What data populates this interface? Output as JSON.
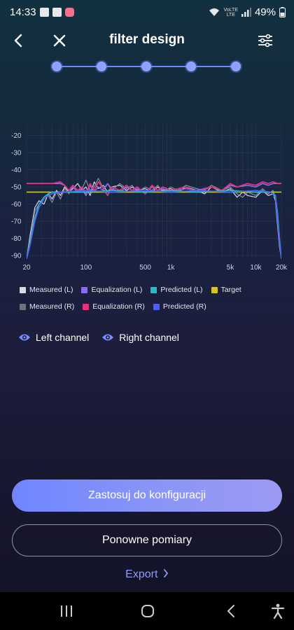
{
  "status_bar": {
    "time": "14:33",
    "battery": "49%",
    "network_label_top": "VoLTE",
    "network_label_bottom": "LTE"
  },
  "header": {
    "title": "filter design",
    "back_icon": "chevron-left-icon",
    "close_icon": "close-icon",
    "settings_icon": "sliders-icon"
  },
  "stepper": {
    "steps": 5,
    "current": 5
  },
  "chart_data": {
    "type": "line",
    "title": "",
    "xlabel": "",
    "ylabel": "",
    "x_scale": "log",
    "xlim": [
      20,
      20000
    ],
    "ylim": [
      -92,
      -12
    ],
    "grid": true,
    "y_ticks": [
      "-20",
      "-30",
      "-40",
      "-50",
      "-60",
      "-70",
      "-80",
      "-90"
    ],
    "y_tick_values": [
      -20,
      -30,
      -40,
      -50,
      -60,
      -70,
      -80,
      -90
    ],
    "x_ticks": [
      "20",
      "100",
      "500",
      "1k",
      "5k",
      "10k",
      "20k"
    ],
    "x_tick_values": [
      20,
      100,
      500,
      1000,
      5000,
      10000,
      20000
    ],
    "series": [
      {
        "name": "Measured (L)",
        "color": "#d9d9e0",
        "width": 1.2,
        "points": [
          [
            20,
            -92
          ],
          [
            22,
            -78
          ],
          [
            25,
            -62
          ],
          [
            28,
            -58
          ],
          [
            32,
            -60
          ],
          [
            36,
            -54
          ],
          [
            40,
            -57
          ],
          [
            45,
            -52
          ],
          [
            50,
            -55
          ],
          [
            56,
            -50
          ],
          [
            63,
            -53
          ],
          [
            70,
            -51
          ],
          [
            80,
            -48
          ],
          [
            90,
            -52
          ],
          [
            100,
            -50
          ],
          [
            112,
            -55
          ],
          [
            125,
            -47
          ],
          [
            140,
            -51
          ],
          [
            160,
            -49
          ],
          [
            180,
            -53
          ],
          [
            200,
            -50
          ],
          [
            250,
            -49
          ],
          [
            300,
            -52
          ],
          [
            350,
            -50
          ],
          [
            400,
            -52
          ],
          [
            500,
            -51
          ],
          [
            600,
            -53
          ],
          [
            700,
            -50
          ],
          [
            800,
            -52
          ],
          [
            1000,
            -51
          ],
          [
            1200,
            -53
          ],
          [
            1500,
            -50
          ],
          [
            2000,
            -52
          ],
          [
            2500,
            -54
          ],
          [
            3000,
            -50
          ],
          [
            4000,
            -53
          ],
          [
            5000,
            -51
          ],
          [
            6000,
            -56
          ],
          [
            7000,
            -53
          ],
          [
            8000,
            -55
          ],
          [
            10000,
            -56
          ],
          [
            12000,
            -52
          ],
          [
            14000,
            -55
          ],
          [
            16000,
            -54
          ],
          [
            17000,
            -58
          ],
          [
            18000,
            -72
          ],
          [
            19000,
            -85
          ],
          [
            20000,
            -92
          ]
        ]
      },
      {
        "name": "Measured (R)",
        "color": "#8a8d96",
        "width": 1.2,
        "points": [
          [
            20,
            -92
          ],
          [
            22,
            -80
          ],
          [
            25,
            -64
          ],
          [
            28,
            -60
          ],
          [
            32,
            -57
          ],
          [
            36,
            -55
          ],
          [
            40,
            -59
          ],
          [
            45,
            -53
          ],
          [
            50,
            -57
          ],
          [
            56,
            -51
          ],
          [
            63,
            -54
          ],
          [
            70,
            -49
          ],
          [
            80,
            -53
          ],
          [
            90,
            -51
          ],
          [
            100,
            -46
          ],
          [
            112,
            -52
          ],
          [
            125,
            -50
          ],
          [
            140,
            -45
          ],
          [
            160,
            -51
          ],
          [
            180,
            -48
          ],
          [
            200,
            -52
          ],
          [
            250,
            -48
          ],
          [
            300,
            -51
          ],
          [
            350,
            -49
          ],
          [
            400,
            -53
          ],
          [
            500,
            -50
          ],
          [
            600,
            -52
          ],
          [
            700,
            -49
          ],
          [
            800,
            -53
          ],
          [
            1000,
            -50
          ],
          [
            1200,
            -52
          ],
          [
            1500,
            -49
          ],
          [
            2000,
            -51
          ],
          [
            2500,
            -52
          ],
          [
            3000,
            -49
          ],
          [
            4000,
            -52
          ],
          [
            5000,
            -50
          ],
          [
            6000,
            -54
          ],
          [
            7000,
            -56
          ],
          [
            8000,
            -53
          ],
          [
            10000,
            -55
          ],
          [
            12000,
            -51
          ],
          [
            14000,
            -54
          ],
          [
            16000,
            -52
          ],
          [
            17000,
            -57
          ],
          [
            18000,
            -70
          ],
          [
            19000,
            -84
          ],
          [
            20000,
            -92
          ]
        ]
      },
      {
        "name": "Equalization (L)",
        "color": "#8b6cf0",
        "width": 1.6,
        "points": [
          [
            20,
            -48
          ],
          [
            30,
            -48
          ],
          [
            40,
            -48
          ],
          [
            50,
            -48
          ],
          [
            56,
            -49
          ],
          [
            63,
            -52
          ],
          [
            70,
            -50
          ],
          [
            80,
            -53
          ],
          [
            90,
            -51
          ],
          [
            100,
            -55
          ],
          [
            112,
            -49
          ],
          [
            125,
            -53
          ],
          [
            140,
            -50
          ],
          [
            160,
            -52
          ],
          [
            180,
            -48
          ],
          [
            200,
            -51
          ],
          [
            250,
            -53
          ],
          [
            300,
            -50
          ],
          [
            350,
            -52
          ],
          [
            400,
            -51
          ],
          [
            500,
            -53
          ],
          [
            600,
            -50
          ],
          [
            700,
            -52
          ],
          [
            800,
            -51
          ],
          [
            1000,
            -53
          ],
          [
            1500,
            -51
          ],
          [
            2000,
            -52
          ],
          [
            3000,
            -50
          ],
          [
            4000,
            -52
          ],
          [
            5000,
            -49
          ],
          [
            6000,
            -50
          ],
          [
            8000,
            -49
          ],
          [
            10000,
            -50
          ],
          [
            12000,
            -48
          ],
          [
            14000,
            -49
          ],
          [
            16000,
            -48
          ],
          [
            18000,
            -48
          ],
          [
            20000,
            -48
          ]
        ]
      },
      {
        "name": "Equalization (R)",
        "color": "#e0357c",
        "width": 1.8,
        "points": [
          [
            20,
            -48
          ],
          [
            30,
            -48
          ],
          [
            40,
            -48
          ],
          [
            50,
            -47
          ],
          [
            56,
            -49
          ],
          [
            63,
            -52
          ],
          [
            70,
            -49
          ],
          [
            80,
            -52
          ],
          [
            90,
            -50
          ],
          [
            100,
            -54
          ],
          [
            112,
            -48
          ],
          [
            125,
            -52
          ],
          [
            140,
            -47
          ],
          [
            160,
            -51
          ],
          [
            180,
            -55
          ],
          [
            200,
            -50
          ],
          [
            250,
            -52
          ],
          [
            300,
            -49
          ],
          [
            350,
            -52
          ],
          [
            400,
            -50
          ],
          [
            500,
            -54
          ],
          [
            600,
            -49
          ],
          [
            700,
            -52
          ],
          [
            800,
            -50
          ],
          [
            1000,
            -52
          ],
          [
            1500,
            -50
          ],
          [
            2000,
            -53
          ],
          [
            3000,
            -50
          ],
          [
            4000,
            -52
          ],
          [
            5000,
            -48
          ],
          [
            6000,
            -50
          ],
          [
            8000,
            -48
          ],
          [
            10000,
            -49
          ],
          [
            12000,
            -47
          ],
          [
            14000,
            -48
          ],
          [
            16000,
            -47
          ],
          [
            18000,
            -48
          ],
          [
            20000,
            -48
          ]
        ]
      },
      {
        "name": "Target",
        "color": "#d6c22d",
        "width": 1.6,
        "points": [
          [
            20,
            -53
          ],
          [
            20000,
            -53
          ]
        ]
      },
      {
        "name": "Predicted (L)",
        "color": "#2fb8c8",
        "width": 1.6,
        "points": [
          [
            20,
            -92
          ],
          [
            22,
            -82
          ],
          [
            25,
            -68
          ],
          [
            28,
            -60
          ],
          [
            32,
            -56
          ],
          [
            36,
            -54
          ],
          [
            40,
            -53
          ],
          [
            50,
            -53
          ],
          [
            100,
            -53
          ],
          [
            200,
            -52
          ],
          [
            500,
            -53
          ],
          [
            1000,
            -52
          ],
          [
            2000,
            -53
          ],
          [
            5000,
            -52
          ],
          [
            10000,
            -53
          ],
          [
            15000,
            -53
          ],
          [
            17000,
            -55
          ],
          [
            18000,
            -65
          ],
          [
            19000,
            -80
          ],
          [
            20000,
            -92
          ]
        ]
      },
      {
        "name": "Predicted (R)",
        "color": "#4d5ff5",
        "width": 1.6,
        "points": [
          [
            20,
            -92
          ],
          [
            22,
            -84
          ],
          [
            25,
            -70
          ],
          [
            28,
            -62
          ],
          [
            32,
            -57
          ],
          [
            36,
            -55
          ],
          [
            40,
            -54
          ],
          [
            50,
            -53
          ],
          [
            100,
            -52
          ],
          [
            200,
            -53
          ],
          [
            500,
            -52
          ],
          [
            1000,
            -53
          ],
          [
            2000,
            -52
          ],
          [
            5000,
            -53
          ],
          [
            10000,
            -52
          ],
          [
            15000,
            -53
          ],
          [
            17000,
            -56
          ],
          [
            18000,
            -68
          ],
          [
            19000,
            -82
          ],
          [
            20000,
            -92
          ]
        ]
      }
    ]
  },
  "legend": {
    "rows": [
      [
        {
          "label": "Measured (L)",
          "color": "#d9d9e0"
        },
        {
          "label": "Equalization (L)",
          "color": "#8b6cf0"
        },
        {
          "label": "Predicted (L)",
          "color": "#2fb8c8"
        },
        {
          "label": "Target",
          "color": "#d6c22d"
        }
      ],
      [
        {
          "label": "Measured (R)",
          "color": "#6f727c"
        },
        {
          "label": "Equalization (R)",
          "color": "#e0357c"
        },
        {
          "label": "Predicted (R)",
          "color": "#4d5ff5"
        }
      ]
    ]
  },
  "channels": {
    "left_label": "Left channel",
    "right_label": "Right channel",
    "icon": "eye-icon"
  },
  "actions": {
    "apply_label": "Zastosuj do konfiguracji",
    "remeasure_label": "Ponowne pomiary",
    "export_label": "Export",
    "export_icon": "chevron-right-icon"
  },
  "nav_bar": {
    "recents_icon": "recents-icon",
    "home_icon": "home-icon",
    "back_icon": "back-icon",
    "accessibility_icon": "accessibility-icon"
  },
  "colors": {
    "accent": "#6f86ff",
    "link": "#8c9bff",
    "grid": "#2c3550"
  }
}
